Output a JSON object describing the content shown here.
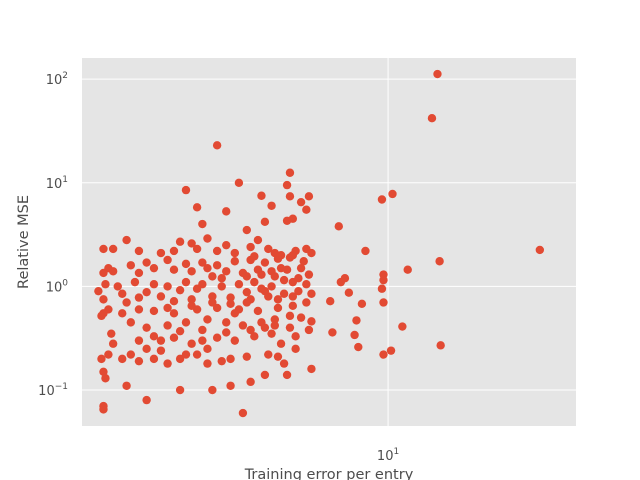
{
  "chart_data": {
    "type": "scatter",
    "title": "",
    "xlabel": "Training error per entry",
    "ylabel": "Relative MSE",
    "xscale": "log",
    "yscale": "log",
    "xlim": [
      1.3,
      35.0
    ],
    "ylim": [
      0.045,
      160
    ],
    "grid": true,
    "marker_color": "#e24a33",
    "background_color": "#e5e5e5",
    "x_ticks": [
      {
        "value": 10,
        "base": "10",
        "exp": "1"
      }
    ],
    "y_ticks": [
      {
        "value": 0.1,
        "base": "10",
        "exp": "−1"
      },
      {
        "value": 1,
        "base": "10",
        "exp": "0"
      },
      {
        "value": 10,
        "base": "10",
        "exp": "1"
      },
      {
        "value": 100,
        "base": "10",
        "exp": "2"
      }
    ],
    "points": [
      [
        13.9,
        112
      ],
      [
        13.4,
        42
      ],
      [
        3.2,
        23
      ],
      [
        10.3,
        7.8
      ],
      [
        9.6,
        6.9
      ],
      [
        27.5,
        2.25
      ],
      [
        14.1,
        1.75
      ],
      [
        11.4,
        1.45
      ],
      [
        14.2,
        0.27
      ],
      [
        11.0,
        0.41
      ],
      [
        10.2,
        0.24
      ],
      [
        9.7,
        0.22
      ],
      [
        8.6,
        2.2
      ],
      [
        9.7,
        1.3
      ],
      [
        9.7,
        1.15
      ],
      [
        9.6,
        0.95
      ],
      [
        9.7,
        0.7
      ],
      [
        8.4,
        0.68
      ],
      [
        8.1,
        0.47
      ],
      [
        8.2,
        0.26
      ],
      [
        8.0,
        0.34
      ],
      [
        7.7,
        0.87
      ],
      [
        7.5,
        1.2
      ],
      [
        7.2,
        3.8
      ],
      [
        7.3,
        1.1
      ],
      [
        6.9,
        0.36
      ],
      [
        6.8,
        0.72
      ],
      [
        5.9,
        7.4
      ],
      [
        5.8,
        5.5
      ],
      [
        5.6,
        6.5
      ],
      [
        5.2,
        12.5
      ],
      [
        5.1,
        9.5
      ],
      [
        5.2,
        7.4
      ],
      [
        5.1,
        4.3
      ],
      [
        5.3,
        4.5
      ],
      [
        4.6,
        6.0
      ],
      [
        4.3,
        7.5
      ],
      [
        3.7,
        10.0
      ],
      [
        3.4,
        5.3
      ],
      [
        2.8,
        5.8
      ],
      [
        2.6,
        8.5
      ],
      [
        3.9,
        3.5
      ],
      [
        4.4,
        4.2
      ],
      [
        4.2,
        2.8
      ],
      [
        4.0,
        2.4
      ],
      [
        2.9,
        4.0
      ],
      [
        5.8,
        2.3
      ],
      [
        6.0,
        2.1
      ],
      [
        5.4,
        2.2
      ],
      [
        4.9,
        2.0
      ],
      [
        2.7,
        2.6
      ],
      [
        2.5,
        2.7
      ],
      [
        1.75,
        2.8
      ],
      [
        1.6,
        2.3
      ],
      [
        1.5,
        2.3
      ],
      [
        1.55,
        1.5
      ],
      [
        1.6,
        1.4
      ],
      [
        1.5,
        1.35
      ],
      [
        1.52,
        1.05
      ],
      [
        1.45,
        0.9
      ],
      [
        1.5,
        0.75
      ],
      [
        1.55,
        0.6
      ],
      [
        1.5,
        0.55
      ],
      [
        1.48,
        0.52
      ],
      [
        1.58,
        0.35
      ],
      [
        1.6,
        0.28
      ],
      [
        1.48,
        0.2
      ],
      [
        1.5,
        0.15
      ],
      [
        1.52,
        0.13
      ],
      [
        1.55,
        0.22
      ],
      [
        1.7,
        0.2
      ],
      [
        1.75,
        0.11
      ],
      [
        1.5,
        0.07
      ],
      [
        1.5,
        0.065
      ],
      [
        2.0,
        0.08
      ],
      [
        2.5,
        0.1
      ],
      [
        3.1,
        0.1
      ],
      [
        3.5,
        0.11
      ],
      [
        4.0,
        0.12
      ],
      [
        3.8,
        0.06
      ],
      [
        4.4,
        0.14
      ],
      [
        5.1,
        0.14
      ],
      [
        6.0,
        0.16
      ],
      [
        5.0,
        0.18
      ],
      [
        4.8,
        0.21
      ],
      [
        4.5,
        0.22
      ],
      [
        3.9,
        0.21
      ],
      [
        3.5,
        0.2
      ],
      [
        3.3,
        0.19
      ],
      [
        3.0,
        0.18
      ],
      [
        2.8,
        0.22
      ],
      [
        2.5,
        0.2
      ],
      [
        2.3,
        0.18
      ],
      [
        2.1,
        0.2
      ],
      [
        1.9,
        0.19
      ],
      [
        1.8,
        0.22
      ],
      [
        2.0,
        0.25
      ],
      [
        2.2,
        0.3
      ],
      [
        2.4,
        0.32
      ],
      [
        2.7,
        0.28
      ],
      [
        2.9,
        0.3
      ],
      [
        3.2,
        0.32
      ],
      [
        3.6,
        0.3
      ],
      [
        4.1,
        0.33
      ],
      [
        4.6,
        0.35
      ],
      [
        5.4,
        0.33
      ],
      [
        5.9,
        0.38
      ],
      [
        6.0,
        0.46
      ],
      [
        5.6,
        0.5
      ],
      [
        5.2,
        0.52
      ],
      [
        4.7,
        0.48
      ],
      [
        4.3,
        0.45
      ],
      [
        3.8,
        0.42
      ],
      [
        3.4,
        0.45
      ],
      [
        3.0,
        0.48
      ],
      [
        2.6,
        0.45
      ],
      [
        2.3,
        0.42
      ],
      [
        2.0,
        0.4
      ],
      [
        1.8,
        0.45
      ],
      [
        1.7,
        0.55
      ],
      [
        1.9,
        0.6
      ],
      [
        2.1,
        0.58
      ],
      [
        2.4,
        0.55
      ],
      [
        2.8,
        0.6
      ],
      [
        3.2,
        0.62
      ],
      [
        3.7,
        0.6
      ],
      [
        4.2,
        0.58
      ],
      [
        4.8,
        0.62
      ],
      [
        5.3,
        0.65
      ],
      [
        5.8,
        0.7
      ],
      [
        6.0,
        0.85
      ],
      [
        5.5,
        0.9
      ],
      [
        5.0,
        0.85
      ],
      [
        4.5,
        0.8
      ],
      [
        4.0,
        0.75
      ],
      [
        3.5,
        0.78
      ],
      [
        3.1,
        0.8
      ],
      [
        2.7,
        0.75
      ],
      [
        2.4,
        0.72
      ],
      [
        2.2,
        0.8
      ],
      [
        1.9,
        0.78
      ],
      [
        1.7,
        0.85
      ],
      [
        1.65,
        1.0
      ],
      [
        1.85,
        1.1
      ],
      [
        2.1,
        1.05
      ],
      [
        2.3,
        1.0
      ],
      [
        2.6,
        1.1
      ],
      [
        2.9,
        1.05
      ],
      [
        3.3,
        1.0
      ],
      [
        3.7,
        1.05
      ],
      [
        4.1,
        1.1
      ],
      [
        4.6,
        1.0
      ],
      [
        5.0,
        1.15
      ],
      [
        5.5,
        1.2
      ],
      [
        5.9,
        1.3
      ],
      [
        5.6,
        1.5
      ],
      [
        5.1,
        1.45
      ],
      [
        4.6,
        1.4
      ],
      [
        4.2,
        1.45
      ],
      [
        3.8,
        1.35
      ],
      [
        3.4,
        1.4
      ],
      [
        3.0,
        1.5
      ],
      [
        2.7,
        1.4
      ],
      [
        2.4,
        1.45
      ],
      [
        2.1,
        1.5
      ],
      [
        1.9,
        1.35
      ],
      [
        1.8,
        1.6
      ],
      [
        2.0,
        1.7
      ],
      [
        2.3,
        1.8
      ],
      [
        2.6,
        1.65
      ],
      [
        2.9,
        1.7
      ],
      [
        3.2,
        1.6
      ],
      [
        3.6,
        1.75
      ],
      [
        4.0,
        1.8
      ],
      [
        4.4,
        1.7
      ],
      [
        4.8,
        1.85
      ],
      [
        5.2,
        1.9
      ],
      [
        5.7,
        1.75
      ],
      [
        4.5,
        2.3
      ],
      [
        4.9,
        1.5
      ],
      [
        4.3,
        0.95
      ],
      [
        3.9,
        0.7
      ],
      [
        3.6,
        0.55
      ],
      [
        4.4,
        0.4
      ],
      [
        4.9,
        0.28
      ],
      [
        5.4,
        0.25
      ],
      [
        3.0,
        0.25
      ],
      [
        2.6,
        0.22
      ],
      [
        2.2,
        0.24
      ],
      [
        1.9,
        0.3
      ],
      [
        2.1,
        0.33
      ],
      [
        2.5,
        0.37
      ],
      [
        2.9,
        0.38
      ],
      [
        3.4,
        0.36
      ],
      [
        4.0,
        0.38
      ],
      [
        4.7,
        0.42
      ],
      [
        5.2,
        0.4
      ],
      [
        3.1,
        1.25
      ],
      [
        3.3,
        1.2
      ],
      [
        3.9,
        1.25
      ],
      [
        4.3,
        1.3
      ],
      [
        4.7,
        1.25
      ],
      [
        5.3,
        1.1
      ],
      [
        2.8,
        0.95
      ],
      [
        2.5,
        0.92
      ],
      [
        2.0,
        0.88
      ],
      [
        1.75,
        0.7
      ],
      [
        2.3,
        0.62
      ],
      [
        2.7,
        0.65
      ],
      [
        3.1,
        0.7
      ],
      [
        3.5,
        0.68
      ],
      [
        3.9,
        0.88
      ],
      [
        4.4,
        0.9
      ],
      [
        4.8,
        0.75
      ],
      [
        5.3,
        0.8
      ],
      [
        5.8,
        1.05
      ],
      [
        2.2,
        2.1
      ],
      [
        2.4,
        2.2
      ],
      [
        1.9,
        2.2
      ],
      [
        2.8,
        2.3
      ],
      [
        3.4,
        2.5
      ],
      [
        3.0,
        2.9
      ],
      [
        3.2,
        2.2
      ],
      [
        3.6,
        2.1
      ],
      [
        4.1,
        1.95
      ],
      [
        4.7,
        2.1
      ],
      [
        5.3,
        2.0
      ]
    ]
  }
}
